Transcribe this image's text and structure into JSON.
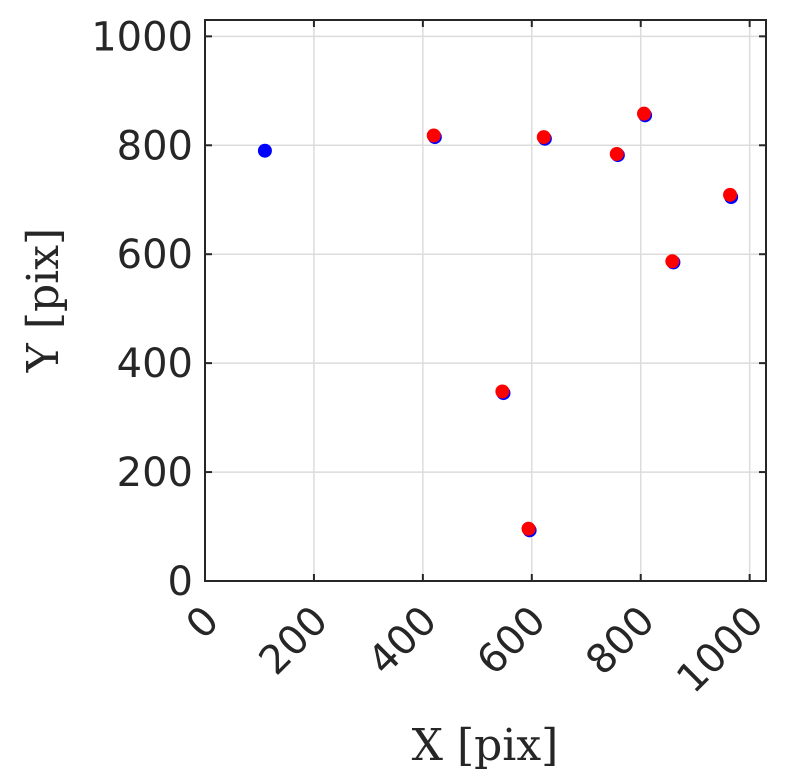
{
  "chart_data": {
    "type": "scatter",
    "xlabel": "X [pix]",
    "ylabel": "Y [pix]",
    "xlim": [
      0,
      1030
    ],
    "ylim": [
      0,
      1030
    ],
    "xticks": [
      0,
      200,
      400,
      600,
      800,
      1000
    ],
    "yticks": [
      0,
      200,
      400,
      600,
      800,
      1000
    ],
    "xtick_labels": [
      "0",
      "200",
      "400",
      "600",
      "800",
      "1000"
    ],
    "ytick_labels": [
      "0",
      "200",
      "400",
      "600",
      "800",
      "1000"
    ],
    "grid": true,
    "series": [
      {
        "color": "#0000ff",
        "points": [
          {
            "x": 110,
            "y": 790
          },
          {
            "x": 422,
            "y": 815
          },
          {
            "x": 624,
            "y": 812
          },
          {
            "x": 758,
            "y": 782
          },
          {
            "x": 808,
            "y": 855
          },
          {
            "x": 966,
            "y": 705
          },
          {
            "x": 860,
            "y": 585
          },
          {
            "x": 548,
            "y": 345
          },
          {
            "x": 596,
            "y": 93
          }
        ]
      },
      {
        "color": "#ff0000",
        "points": [
          {
            "x": 420,
            "y": 818
          },
          {
            "x": 622,
            "y": 815
          },
          {
            "x": 756,
            "y": 784
          },
          {
            "x": 806,
            "y": 858
          },
          {
            "x": 964,
            "y": 709
          },
          {
            "x": 858,
            "y": 587
          },
          {
            "x": 546,
            "y": 348
          },
          {
            "x": 594,
            "y": 96
          }
        ]
      }
    ]
  }
}
